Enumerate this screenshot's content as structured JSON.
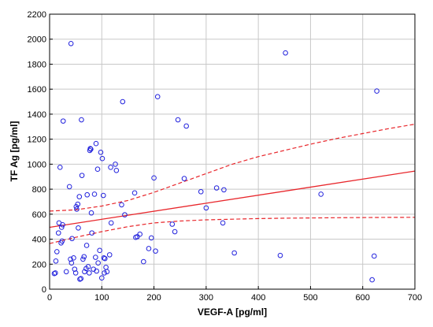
{
  "chart_data": {
    "type": "scatter",
    "title": "",
    "xlabel": "VEGF-A [pg/ml]",
    "ylabel": "TF Ag [pg/ml]",
    "xlim": [
      0,
      700
    ],
    "ylim": [
      0,
      2200
    ],
    "xticks": [
      0,
      100,
      200,
      300,
      400,
      500,
      600,
      700
    ],
    "yticks": [
      0,
      200,
      400,
      600,
      800,
      1000,
      1200,
      1400,
      1600,
      1800,
      2000,
      2200
    ],
    "grid": true,
    "legend": "none",
    "colors": {
      "points": "#2222dd",
      "fit_line": "#e8262b",
      "confidence_band": "#e8262b",
      "grid": "#c8c8c8"
    },
    "points": [
      {
        "x": 9,
        "y": 125
      },
      {
        "x": 11,
        "y": 130
      },
      {
        "x": 12,
        "y": 225
      },
      {
        "x": 14,
        "y": 300
      },
      {
        "x": 17,
        "y": 450
      },
      {
        "x": 18,
        "y": 530
      },
      {
        "x": 20,
        "y": 975
      },
      {
        "x": 22,
        "y": 370
      },
      {
        "x": 23,
        "y": 495
      },
      {
        "x": 24,
        "y": 385
      },
      {
        "x": 25,
        "y": 515
      },
      {
        "x": 26,
        "y": 1345
      },
      {
        "x": 32,
        "y": 140
      },
      {
        "x": 38,
        "y": 820
      },
      {
        "x": 40,
        "y": 240
      },
      {
        "x": 41,
        "y": 1965
      },
      {
        "x": 42,
        "y": 210
      },
      {
        "x": 43,
        "y": 405
      },
      {
        "x": 46,
        "y": 250
      },
      {
        "x": 48,
        "y": 160
      },
      {
        "x": 50,
        "y": 130
      },
      {
        "x": 51,
        "y": 660
      },
      {
        "x": 52,
        "y": 640
      },
      {
        "x": 54,
        "y": 680
      },
      {
        "x": 55,
        "y": 490
      },
      {
        "x": 57,
        "y": 740
      },
      {
        "x": 58,
        "y": 80
      },
      {
        "x": 60,
        "y": 85
      },
      {
        "x": 61,
        "y": 1355
      },
      {
        "x": 62,
        "y": 910
      },
      {
        "x": 64,
        "y": 240
      },
      {
        "x": 66,
        "y": 260
      },
      {
        "x": 67,
        "y": 140
      },
      {
        "x": 70,
        "y": 165
      },
      {
        "x": 71,
        "y": 350
      },
      {
        "x": 72,
        "y": 755
      },
      {
        "x": 74,
        "y": 180
      },
      {
        "x": 76,
        "y": 130
      },
      {
        "x": 77,
        "y": 1110
      },
      {
        "x": 78,
        "y": 1125
      },
      {
        "x": 79,
        "y": 1120
      },
      {
        "x": 80,
        "y": 610
      },
      {
        "x": 81,
        "y": 450
      },
      {
        "x": 84,
        "y": 160
      },
      {
        "x": 86,
        "y": 760
      },
      {
        "x": 88,
        "y": 255
      },
      {
        "x": 89,
        "y": 1165
      },
      {
        "x": 90,
        "y": 145
      },
      {
        "x": 92,
        "y": 960
      },
      {
        "x": 93,
        "y": 210
      },
      {
        "x": 96,
        "y": 310
      },
      {
        "x": 98,
        "y": 1095
      },
      {
        "x": 100,
        "y": 90
      },
      {
        "x": 101,
        "y": 1045
      },
      {
        "x": 103,
        "y": 750
      },
      {
        "x": 104,
        "y": 250
      },
      {
        "x": 105,
        "y": 130
      },
      {
        "x": 106,
        "y": 245
      },
      {
        "x": 108,
        "y": 175
      },
      {
        "x": 110,
        "y": 140
      },
      {
        "x": 115,
        "y": 275
      },
      {
        "x": 117,
        "y": 975
      },
      {
        "x": 118,
        "y": 530
      },
      {
        "x": 126,
        "y": 1000
      },
      {
        "x": 128,
        "y": 950
      },
      {
        "x": 138,
        "y": 675
      },
      {
        "x": 140,
        "y": 1500
      },
      {
        "x": 144,
        "y": 595
      },
      {
        "x": 163,
        "y": 770
      },
      {
        "x": 165,
        "y": 415
      },
      {
        "x": 168,
        "y": 420
      },
      {
        "x": 173,
        "y": 440
      },
      {
        "x": 180,
        "y": 220
      },
      {
        "x": 190,
        "y": 325
      },
      {
        "x": 195,
        "y": 410
      },
      {
        "x": 200,
        "y": 890
      },
      {
        "x": 203,
        "y": 305
      },
      {
        "x": 207,
        "y": 1540
      },
      {
        "x": 235,
        "y": 520
      },
      {
        "x": 240,
        "y": 460
      },
      {
        "x": 246,
        "y": 1355
      },
      {
        "x": 258,
        "y": 885
      },
      {
        "x": 262,
        "y": 1305
      },
      {
        "x": 290,
        "y": 780
      },
      {
        "x": 300,
        "y": 650
      },
      {
        "x": 320,
        "y": 810
      },
      {
        "x": 332,
        "y": 530
      },
      {
        "x": 334,
        "y": 795
      },
      {
        "x": 354,
        "y": 290
      },
      {
        "x": 442,
        "y": 270
      },
      {
        "x": 452,
        "y": 1890
      },
      {
        "x": 520,
        "y": 760
      },
      {
        "x": 618,
        "y": 75
      },
      {
        "x": 622,
        "y": 265
      },
      {
        "x": 627,
        "y": 1585
      }
    ],
    "fit_line": [
      {
        "x": 0,
        "y": 495
      },
      {
        "x": 700,
        "y": 945
      }
    ],
    "confidence_upper": [
      {
        "x": 0,
        "y": 625
      },
      {
        "x": 50,
        "y": 635
      },
      {
        "x": 100,
        "y": 665
      },
      {
        "x": 150,
        "y": 710
      },
      {
        "x": 200,
        "y": 775
      },
      {
        "x": 250,
        "y": 850
      },
      {
        "x": 300,
        "y": 925
      },
      {
        "x": 350,
        "y": 1000
      },
      {
        "x": 400,
        "y": 1060
      },
      {
        "x": 450,
        "y": 1110
      },
      {
        "x": 500,
        "y": 1160
      },
      {
        "x": 550,
        "y": 1205
      },
      {
        "x": 600,
        "y": 1245
      },
      {
        "x": 650,
        "y": 1285
      },
      {
        "x": 700,
        "y": 1320
      }
    ],
    "confidence_lower": [
      {
        "x": 0,
        "y": 365
      },
      {
        "x": 50,
        "y": 415
      },
      {
        "x": 100,
        "y": 460
      },
      {
        "x": 150,
        "y": 500
      },
      {
        "x": 200,
        "y": 530
      },
      {
        "x": 250,
        "y": 545
      },
      {
        "x": 300,
        "y": 555
      },
      {
        "x": 350,
        "y": 560
      },
      {
        "x": 400,
        "y": 565
      },
      {
        "x": 450,
        "y": 568
      },
      {
        "x": 500,
        "y": 570
      },
      {
        "x": 550,
        "y": 572
      },
      {
        "x": 600,
        "y": 573
      },
      {
        "x": 650,
        "y": 574
      },
      {
        "x": 700,
        "y": 575
      }
    ]
  }
}
